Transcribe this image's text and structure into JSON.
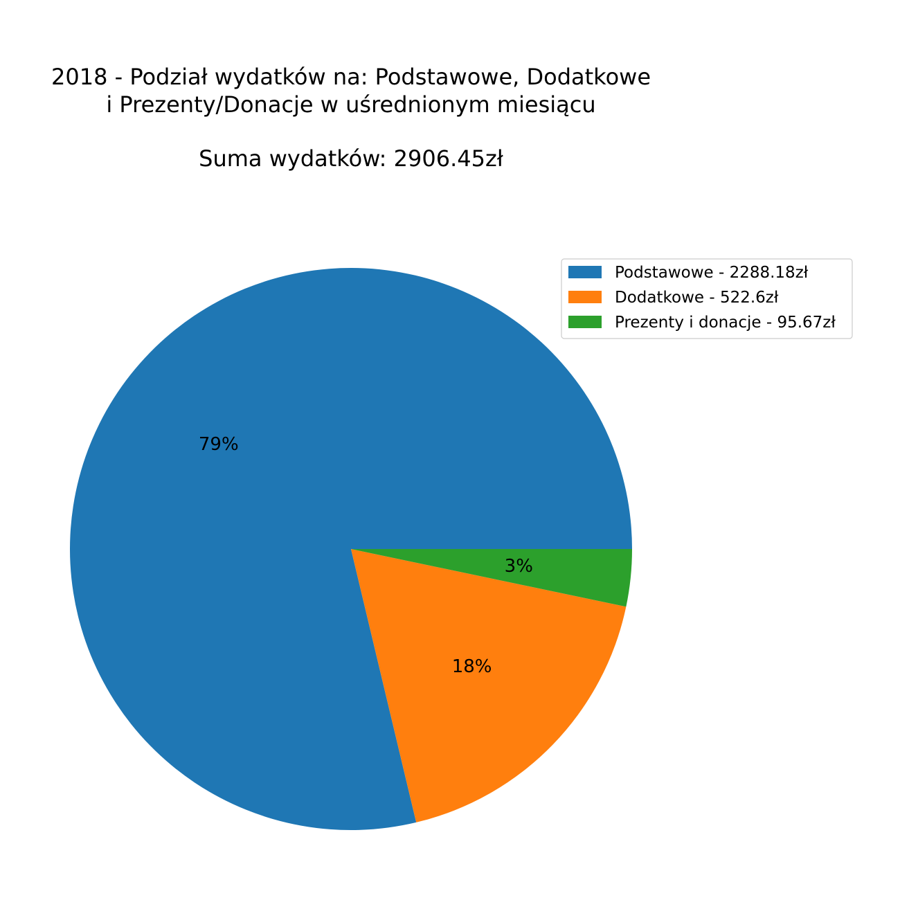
{
  "chart_data": {
    "type": "pie",
    "title_lines": [
      "2018 - Podział wydatków na: Podstawowe, Dodatkowe",
      "i Prezenty/Donacje w uśrednionym miesiącu",
      "",
      "Suma wydatków: 2906.45zł"
    ],
    "slices": [
      {
        "name": "Podstawowe - 2288.18zł",
        "value": 2288.18,
        "pct_label": "79%",
        "color": "#1f77b4"
      },
      {
        "name": "Dodatkowe - 522.6zł",
        "value": 522.6,
        "pct_label": "18%",
        "color": "#ff7f0e"
      },
      {
        "name": "Prezenty i donacje - 95.67zł",
        "value": 95.67,
        "pct_label": "3%",
        "color": "#2ca02c"
      }
    ],
    "direction": "counterclockwise",
    "start_angle_deg": 0,
    "legend_position": "top-right"
  }
}
